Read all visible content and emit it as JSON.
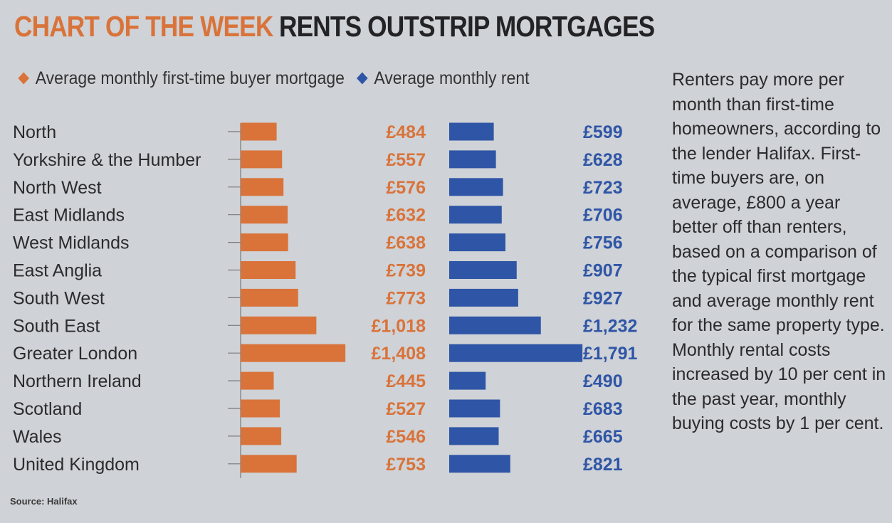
{
  "header": {
    "kicker": "CHART OF THE WEEK",
    "headline": "RENTS OUTSTRIP MORTGAGES"
  },
  "legend": {
    "mortgage_label": "Average monthly first-time buyer mortgage",
    "rent_label": "Average monthly rent"
  },
  "side_text": "Renters pay more per month than first-time homeowners, according to the lender Halifax. First-time buyers are, on average, £800 a year better off than renters, based on a comparison of the typical first mortgage and average monthly rent for the same property type. Monthly rental costs increased by 10 per cent in the past year, monthly buying costs by 1 per cent.",
  "source": "Source: Halifax",
  "colors": {
    "mortgage": "#d9733a",
    "rent": "#2f55a6",
    "background": "#cfd2d6"
  },
  "chart_data": {
    "type": "bar",
    "orientation": "horizontal",
    "categories": [
      "North",
      "Yorkshire & the Humber",
      "North West",
      "East Midlands",
      "West Midlands",
      "East Anglia",
      "South West",
      "South East",
      "Greater London",
      "Northern Ireland",
      "Scotland",
      "Wales",
      "United Kingdom"
    ],
    "series": [
      {
        "name": "Average monthly first-time buyer mortgage",
        "values": [
          484,
          557,
          576,
          632,
          638,
          739,
          773,
          1018,
          1408,
          445,
          527,
          546,
          753
        ],
        "labels": [
          "£484",
          "£557",
          "£576",
          "£632",
          "£638",
          "£739",
          "£773",
          "£1,018",
          "£1,408",
          "£445",
          "£527",
          "£546",
          "£753"
        ]
      },
      {
        "name": "Average monthly rent",
        "values": [
          599,
          628,
          723,
          706,
          756,
          907,
          927,
          1232,
          1791,
          490,
          683,
          665,
          821
        ],
        "labels": [
          "£599",
          "£628",
          "£723",
          "£706",
          "£756",
          "£907",
          "£927",
          "£1,232",
          "£1,791",
          "£490",
          "£683",
          "£665",
          "£821"
        ]
      }
    ],
    "legend_position": "top"
  }
}
